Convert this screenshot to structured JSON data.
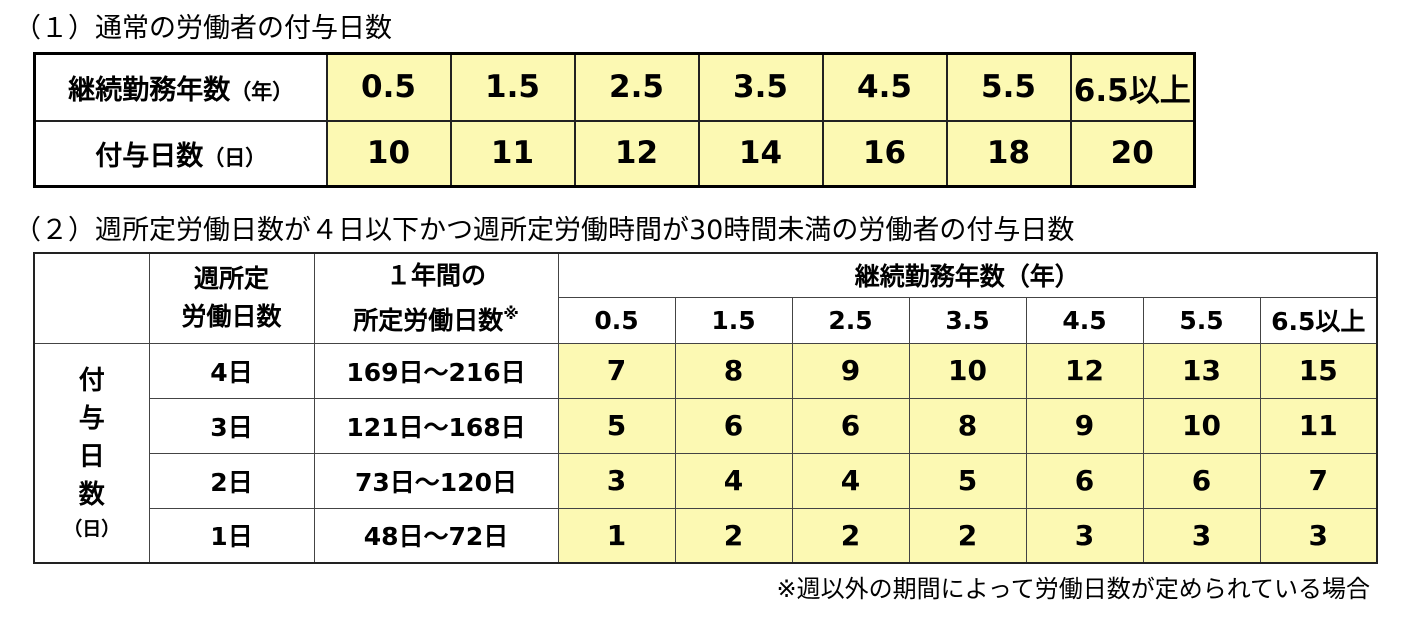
{
  "section1": {
    "title": "（１）通常の労働者の付与日数",
    "header_label": "継続勤務年数",
    "header_unit": "（年）",
    "years": [
      "0.5",
      "1.5",
      "2.5",
      "3.5",
      "4.5",
      "5.5",
      "6.5以上"
    ],
    "row_label": "付与日数",
    "row_unit": "（日）",
    "days": [
      10,
      11,
      12,
      14,
      16,
      18,
      20
    ]
  },
  "section2": {
    "title": "（２）週所定労働日数が４日以下かつ週所定労働時間が30時間未満の労働者の付与日数",
    "col_weekly": [
      "週所定",
      "労働日数"
    ],
    "col_yearly": [
      "１年間の",
      "所定労働日数"
    ],
    "col_yearly_note": "※",
    "group_label": "継続勤務年数（年）",
    "years": [
      "0.5",
      "1.5",
      "2.5",
      "3.5",
      "4.5",
      "5.5",
      "6.5以上"
    ],
    "row_group": [
      "付",
      "与",
      "日",
      "数"
    ],
    "row_group_unit": "（日）",
    "rows": [
      {
        "weekly": "4日",
        "yearly": "169日～216日",
        "values": [
          7,
          8,
          9,
          10,
          12,
          13,
          15
        ]
      },
      {
        "weekly": "3日",
        "yearly": "121日～168日",
        "values": [
          5,
          6,
          6,
          8,
          9,
          10,
          11
        ]
      },
      {
        "weekly": "2日",
        "yearly": "73日～120日",
        "values": [
          3,
          4,
          4,
          5,
          6,
          6,
          7
        ]
      },
      {
        "weekly": "1日",
        "yearly": "48日～72日",
        "values": [
          1,
          2,
          2,
          2,
          3,
          3,
          3
        ]
      }
    ],
    "footnote": "※週以外の期間によって労働日数が定められている場合"
  }
}
